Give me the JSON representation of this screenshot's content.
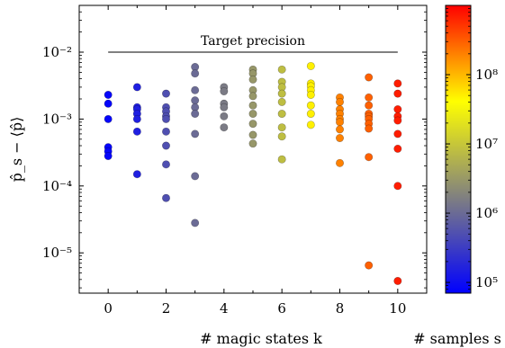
{
  "chart_data": {
    "type": "scatter",
    "xlabel": "# magic states k",
    "ylabel": "p̂_s − ⟨p̂⟩",
    "yscale": "log",
    "xlim": [
      -1,
      11
    ],
    "ylim": [
      2.5e-06,
      0.05
    ],
    "x_ticks": [
      "0",
      "2",
      "4",
      "6",
      "8",
      "10"
    ],
    "y_ticks": [
      "10⁻²",
      "10⁻³",
      "10⁻⁴",
      "10⁻⁵"
    ],
    "grid": false,
    "annotation": {
      "label": "Target precision",
      "y": 0.01,
      "x_range": [
        0,
        10
      ]
    },
    "colorbar": {
      "label": "# samples s",
      "scale": "log",
      "range": [
        70000.0,
        1000000000.0
      ],
      "ticks": [
        "10⁵",
        "10⁶",
        "10⁷",
        "10⁸"
      ],
      "colormap": [
        "#0000ff",
        "#808080",
        "#ffff00",
        "#ff0000"
      ]
    },
    "series": [
      {
        "x": 0,
        "s": 80000,
        "y": [
          0.0023,
          0.0017,
          0.001,
          0.00038,
          0.00033,
          0.00028
        ]
      },
      {
        "x": 1,
        "s": 150000,
        "y": [
          0.003,
          0.0015,
          0.0014,
          0.0012,
          0.001,
          0.00065,
          0.00015
        ]
      },
      {
        "x": 2,
        "s": 500000,
        "y": [
          0.0024,
          0.0015,
          0.0013,
          0.0011,
          0.001,
          0.00065,
          0.0004,
          0.00021,
          6.6e-05
        ]
      },
      {
        "x": 3,
        "s": 1000000,
        "y": [
          0.006,
          0.0048,
          0.0027,
          0.0019,
          0.0015,
          0.0012,
          0.0006,
          0.00014,
          2.8e-05
        ]
      },
      {
        "x": 4,
        "s": 1500000,
        "y": [
          0.003,
          0.0026,
          0.0017,
          0.0015,
          0.0011,
          0.00075
        ]
      },
      {
        "x": 5,
        "s": 3000000,
        "y": [
          0.0055,
          0.0048,
          0.0039,
          0.0027,
          0.0022,
          0.0016,
          0.0012,
          0.00085,
          0.00058,
          0.00043
        ]
      },
      {
        "x": 6,
        "s": 8000000,
        "y": [
          0.0055,
          0.0036,
          0.003,
          0.0024,
          0.0018,
          0.0012,
          0.00075,
          0.00055,
          0.00025
        ]
      },
      {
        "x": 7,
        "s": 50000000,
        "y": [
          0.0062,
          0.0034,
          0.0031,
          0.0027,
          0.0023,
          0.0016,
          0.0012,
          0.00082
        ]
      },
      {
        "x": 8,
        "s": 200000000,
        "y": [
          0.0021,
          0.0018,
          0.0014,
          0.0012,
          0.001,
          0.0009,
          0.0007,
          0.00052,
          0.00022
        ]
      },
      {
        "x": 9,
        "s": 300000000,
        "y": [
          0.0042,
          0.0021,
          0.0016,
          0.0012,
          0.0011,
          0.001,
          0.00085,
          0.00072,
          0.00027,
          6.5e-06
        ]
      },
      {
        "x": 10,
        "s": 700000000,
        "y": [
          0.0034,
          0.0024,
          0.0014,
          0.0011,
          0.00095,
          0.0006,
          0.00036,
          0.0001,
          3.8e-06
        ]
      }
    ]
  }
}
